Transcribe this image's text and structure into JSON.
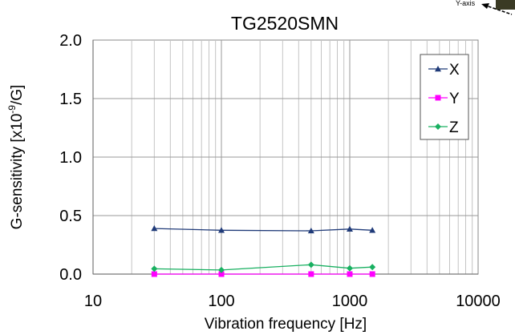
{
  "corner_label": "Y-axis",
  "chart_data": {
    "type": "line",
    "title": "TG2520SMN",
    "xlabel": "Vibration frequency [Hz]",
    "ylabel_main": "G-sensitivity [x10",
    "ylabel_sup": "-9",
    "ylabel_tail": "/G]",
    "x_scale": "log",
    "xlim": [
      10,
      10000
    ],
    "ylim": [
      0,
      2.0
    ],
    "x_ticks": [
      10,
      100,
      1000,
      10000
    ],
    "x_tick_labels": [
      "10",
      "100",
      "1000",
      "10000"
    ],
    "y_ticks": [
      0,
      0.5,
      1.0,
      1.5,
      2.0
    ],
    "y_tick_labels": [
      "0.0",
      "0.5",
      "1.0",
      "1.5",
      "2.0"
    ],
    "grid": true,
    "legend_position": "top-right",
    "x": [
      30,
      100,
      500,
      1000,
      1500
    ],
    "series": [
      {
        "name": "X",
        "color": "#1f3a78",
        "marker": "triangle",
        "values": [
          0.39,
          0.375,
          0.37,
          0.385,
          0.375
        ]
      },
      {
        "name": "Y",
        "color": "#ff00ff",
        "marker": "square",
        "values": [
          0.0,
          0.0,
          0.0,
          0.0,
          0.0
        ]
      },
      {
        "name": "Z",
        "color": "#19b061",
        "marker": "diamond",
        "values": [
          0.045,
          0.035,
          0.08,
          0.05,
          0.06
        ]
      }
    ]
  }
}
